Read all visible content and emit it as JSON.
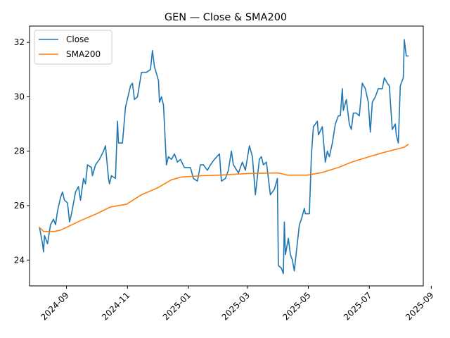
{
  "chart_data": {
    "type": "line",
    "title": "GEN — Close & SMA200",
    "xlabel": "",
    "ylabel": "",
    "xlim": [
      "2024-07-26",
      "2025-08-24"
    ],
    "ylim": [
      23.05,
      32.6
    ],
    "grid": false,
    "legend_position": "upper left",
    "x_ticks": [
      "2024-09",
      "2024-11",
      "2025-01",
      "2025-03",
      "2025-05",
      "2025-07",
      "2025-09"
    ],
    "x_tick_dates": [
      "2024-09-01",
      "2024-11-01",
      "2025-01-01",
      "2025-03-01",
      "2025-05-01",
      "2025-07-01",
      "2025-09-01"
    ],
    "y_ticks": [
      24,
      26,
      28,
      30,
      32
    ],
    "series": [
      {
        "name": "Close",
        "color": "#1f77b4",
        "points": [
          [
            "2024-08-05",
            25.2
          ],
          [
            "2024-08-08",
            24.6
          ],
          [
            "2024-08-09",
            24.3
          ],
          [
            "2024-08-10",
            24.9
          ],
          [
            "2024-08-13",
            24.6
          ],
          [
            "2024-08-16",
            25.3
          ],
          [
            "2024-08-19",
            25.5
          ],
          [
            "2024-08-21",
            25.3
          ],
          [
            "2024-08-23",
            25.8
          ],
          [
            "2024-08-26",
            26.3
          ],
          [
            "2024-08-28",
            26.5
          ],
          [
            "2024-08-30",
            26.2
          ],
          [
            "2024-09-02",
            26.1
          ],
          [
            "2024-09-04",
            25.4
          ],
          [
            "2024-09-06",
            25.7
          ],
          [
            "2024-09-10",
            26.5
          ],
          [
            "2024-09-13",
            26.7
          ],
          [
            "2024-09-15",
            26.2
          ],
          [
            "2024-09-18",
            27.0
          ],
          [
            "2024-09-20",
            26.8
          ],
          [
            "2024-09-22",
            27.5
          ],
          [
            "2024-09-26",
            27.4
          ],
          [
            "2024-09-27",
            27.1
          ],
          [
            "2024-09-30",
            27.5
          ],
          [
            "2024-10-04",
            27.7
          ],
          [
            "2024-10-08",
            28.0
          ],
          [
            "2024-10-10",
            28.2
          ],
          [
            "2024-10-13",
            27.0
          ],
          [
            "2024-10-14",
            26.8
          ],
          [
            "2024-10-16",
            27.1
          ],
          [
            "2024-10-20",
            27.0
          ],
          [
            "2024-10-22",
            29.1
          ],
          [
            "2024-10-23",
            28.3
          ],
          [
            "2024-10-27",
            28.3
          ],
          [
            "2024-10-30",
            29.6
          ],
          [
            "2024-11-04",
            30.4
          ],
          [
            "2024-11-06",
            30.5
          ],
          [
            "2024-11-08",
            29.9
          ],
          [
            "2024-11-11",
            30.0
          ],
          [
            "2024-11-15",
            30.9
          ],
          [
            "2024-11-20",
            30.9
          ],
          [
            "2024-11-24",
            31.0
          ],
          [
            "2024-11-26",
            31.7
          ],
          [
            "2024-11-28",
            31.1
          ],
          [
            "2024-12-02",
            30.6
          ],
          [
            "2024-12-03",
            29.8
          ],
          [
            "2024-12-05",
            30.0
          ],
          [
            "2024-12-07",
            29.7
          ],
          [
            "2024-12-10",
            27.5
          ],
          [
            "2024-12-12",
            27.8
          ],
          [
            "2024-12-15",
            27.7
          ],
          [
            "2024-12-18",
            27.9
          ],
          [
            "2024-12-21",
            27.6
          ],
          [
            "2024-12-24",
            27.7
          ],
          [
            "2024-12-28",
            27.4
          ],
          [
            "2025-01-03",
            27.4
          ],
          [
            "2025-01-06",
            27.0
          ],
          [
            "2025-01-10",
            26.9
          ],
          [
            "2025-01-13",
            27.5
          ],
          [
            "2025-01-16",
            27.5
          ],
          [
            "2025-01-20",
            27.3
          ],
          [
            "2025-01-23",
            27.5
          ],
          [
            "2025-01-27",
            27.7
          ],
          [
            "2025-02-01",
            27.9
          ],
          [
            "2025-02-03",
            26.9
          ],
          [
            "2025-02-07",
            27.0
          ],
          [
            "2025-02-10",
            27.3
          ],
          [
            "2025-02-13",
            28.0
          ],
          [
            "2025-02-15",
            27.5
          ],
          [
            "2025-02-20",
            27.2
          ],
          [
            "2025-02-24",
            27.6
          ],
          [
            "2025-02-27",
            27.3
          ],
          [
            "2025-03-03",
            28.2
          ],
          [
            "2025-03-06",
            27.8
          ],
          [
            "2025-03-09",
            26.4
          ],
          [
            "2025-03-13",
            27.7
          ],
          [
            "2025-03-15",
            27.8
          ],
          [
            "2025-03-17",
            27.5
          ],
          [
            "2025-03-20",
            27.6
          ],
          [
            "2025-03-24",
            26.4
          ],
          [
            "2025-03-28",
            26.6
          ],
          [
            "2025-03-31",
            27.0
          ],
          [
            "2025-04-01",
            23.8
          ],
          [
            "2025-04-04",
            23.7
          ],
          [
            "2025-04-06",
            23.5
          ],
          [
            "2025-04-07",
            25.4
          ],
          [
            "2025-04-08",
            24.2
          ],
          [
            "2025-04-11",
            24.8
          ],
          [
            "2025-04-13",
            24.2
          ],
          [
            "2025-04-15",
            24.0
          ],
          [
            "2025-04-17",
            23.6
          ],
          [
            "2025-04-19",
            24.3
          ],
          [
            "2025-04-22",
            25.3
          ],
          [
            "2025-04-24",
            25.5
          ],
          [
            "2025-04-27",
            25.9
          ],
          [
            "2025-04-28",
            25.7
          ],
          [
            "2025-05-02",
            25.7
          ],
          [
            "2025-05-04",
            27.8
          ],
          [
            "2025-05-06",
            28.9
          ],
          [
            "2025-05-08",
            29.0
          ],
          [
            "2025-05-10",
            29.1
          ],
          [
            "2025-05-11",
            28.6
          ],
          [
            "2025-05-15",
            28.9
          ],
          [
            "2025-05-18",
            27.6
          ],
          [
            "2025-05-20",
            28.0
          ],
          [
            "2025-05-22",
            27.8
          ],
          [
            "2025-05-25",
            28.3
          ],
          [
            "2025-05-28",
            29.0
          ],
          [
            "2025-05-31",
            29.3
          ],
          [
            "2025-06-02",
            29.3
          ],
          [
            "2025-06-04",
            30.3
          ],
          [
            "2025-06-05",
            29.5
          ],
          [
            "2025-06-08",
            29.9
          ],
          [
            "2025-06-11",
            29.0
          ],
          [
            "2025-06-13",
            28.8
          ],
          [
            "2025-06-15",
            29.4
          ],
          [
            "2025-06-18",
            29.4
          ],
          [
            "2025-06-21",
            29.3
          ],
          [
            "2025-06-24",
            30.5
          ],
          [
            "2025-06-27",
            30.3
          ],
          [
            "2025-06-30",
            29.8
          ],
          [
            "2025-07-02",
            28.7
          ],
          [
            "2025-07-04",
            29.8
          ],
          [
            "2025-07-07",
            30.0
          ],
          [
            "2025-07-10",
            30.3
          ],
          [
            "2025-07-14",
            30.3
          ],
          [
            "2025-07-16",
            30.7
          ],
          [
            "2025-07-19",
            30.5
          ],
          [
            "2025-07-21",
            30.4
          ],
          [
            "2025-07-24",
            28.8
          ],
          [
            "2025-07-27",
            29.0
          ],
          [
            "2025-07-28",
            28.6
          ],
          [
            "2025-07-30",
            28.3
          ],
          [
            "2025-08-01",
            30.4
          ],
          [
            "2025-08-04",
            30.7
          ],
          [
            "2025-08-05",
            32.1
          ],
          [
            "2025-08-07",
            31.5
          ],
          [
            "2025-08-09",
            31.5
          ]
        ]
      },
      {
        "name": "SMA200",
        "color": "#ff7f0e",
        "points": [
          [
            "2024-08-05",
            25.2
          ],
          [
            "2024-08-09",
            25.05
          ],
          [
            "2024-08-15",
            25.05
          ],
          [
            "2024-08-20",
            25.05
          ],
          [
            "2024-08-26",
            25.1
          ],
          [
            "2024-09-01",
            25.2
          ],
          [
            "2024-09-15",
            25.45
          ],
          [
            "2024-10-01",
            25.7
          ],
          [
            "2024-10-15",
            25.95
          ],
          [
            "2024-10-31",
            26.05
          ],
          [
            "2024-11-15",
            26.4
          ],
          [
            "2024-12-01",
            26.65
          ],
          [
            "2024-12-15",
            26.95
          ],
          [
            "2024-12-25",
            27.05
          ],
          [
            "2025-01-15",
            27.1
          ],
          [
            "2025-02-01",
            27.12
          ],
          [
            "2025-03-01",
            27.18
          ],
          [
            "2025-04-01",
            27.2
          ],
          [
            "2025-04-10",
            27.12
          ],
          [
            "2025-04-30",
            27.12
          ],
          [
            "2025-05-15",
            27.22
          ],
          [
            "2025-05-31",
            27.4
          ],
          [
            "2025-06-15",
            27.62
          ],
          [
            "2025-07-01",
            27.8
          ],
          [
            "2025-07-15",
            27.95
          ],
          [
            "2025-07-31",
            28.1
          ],
          [
            "2025-08-05",
            28.15
          ],
          [
            "2025-08-09",
            28.25
          ]
        ]
      }
    ]
  }
}
